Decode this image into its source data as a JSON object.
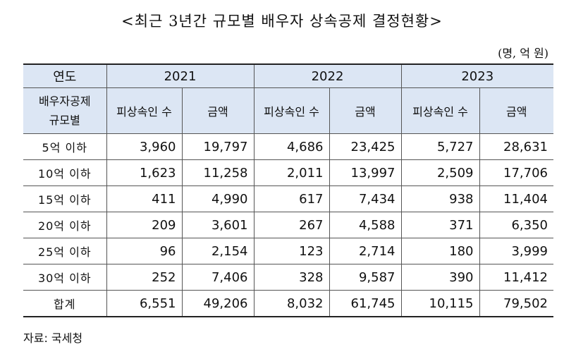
{
  "title": "<최근 3년간 규모별 배우자 상속공제 결정현황>",
  "unit": "(명, 억 원)",
  "table": {
    "corner_top": "연도",
    "corner_bottom_line1": "배우자공제",
    "corner_bottom_line2": "규모별",
    "years": [
      "2021",
      "2022",
      "2023"
    ],
    "col_heirs": "피상속인 수",
    "col_amount": "금액",
    "rows": [
      {
        "label": "5억 이하",
        "values": [
          "3,960",
          "19,797",
          "4,686",
          "23,425",
          "5,727",
          "28,631"
        ]
      },
      {
        "label": "10억 이하",
        "values": [
          "1,623",
          "11,258",
          "2,011",
          "13,997",
          "2,509",
          "17,706"
        ]
      },
      {
        "label": "15억 이하",
        "values": [
          "411",
          "4,990",
          "617",
          "7,434",
          "938",
          "11,404"
        ]
      },
      {
        "label": "20억 이하",
        "values": [
          "209",
          "3,601",
          "267",
          "4,588",
          "371",
          "6,350"
        ]
      },
      {
        "label": "25억 이하",
        "values": [
          "96",
          "2,154",
          "123",
          "2,714",
          "180",
          "3,999"
        ]
      },
      {
        "label": "30억 이하",
        "values": [
          "252",
          "7,406",
          "328",
          "9,587",
          "390",
          "11,412"
        ]
      },
      {
        "label": "합계",
        "values": [
          "6,551",
          "49,206",
          "8,032",
          "61,745",
          "10,115",
          "79,502"
        ]
      }
    ]
  },
  "source": "자료: 국세청",
  "colors": {
    "header_bg": "#dce6f4"
  }
}
